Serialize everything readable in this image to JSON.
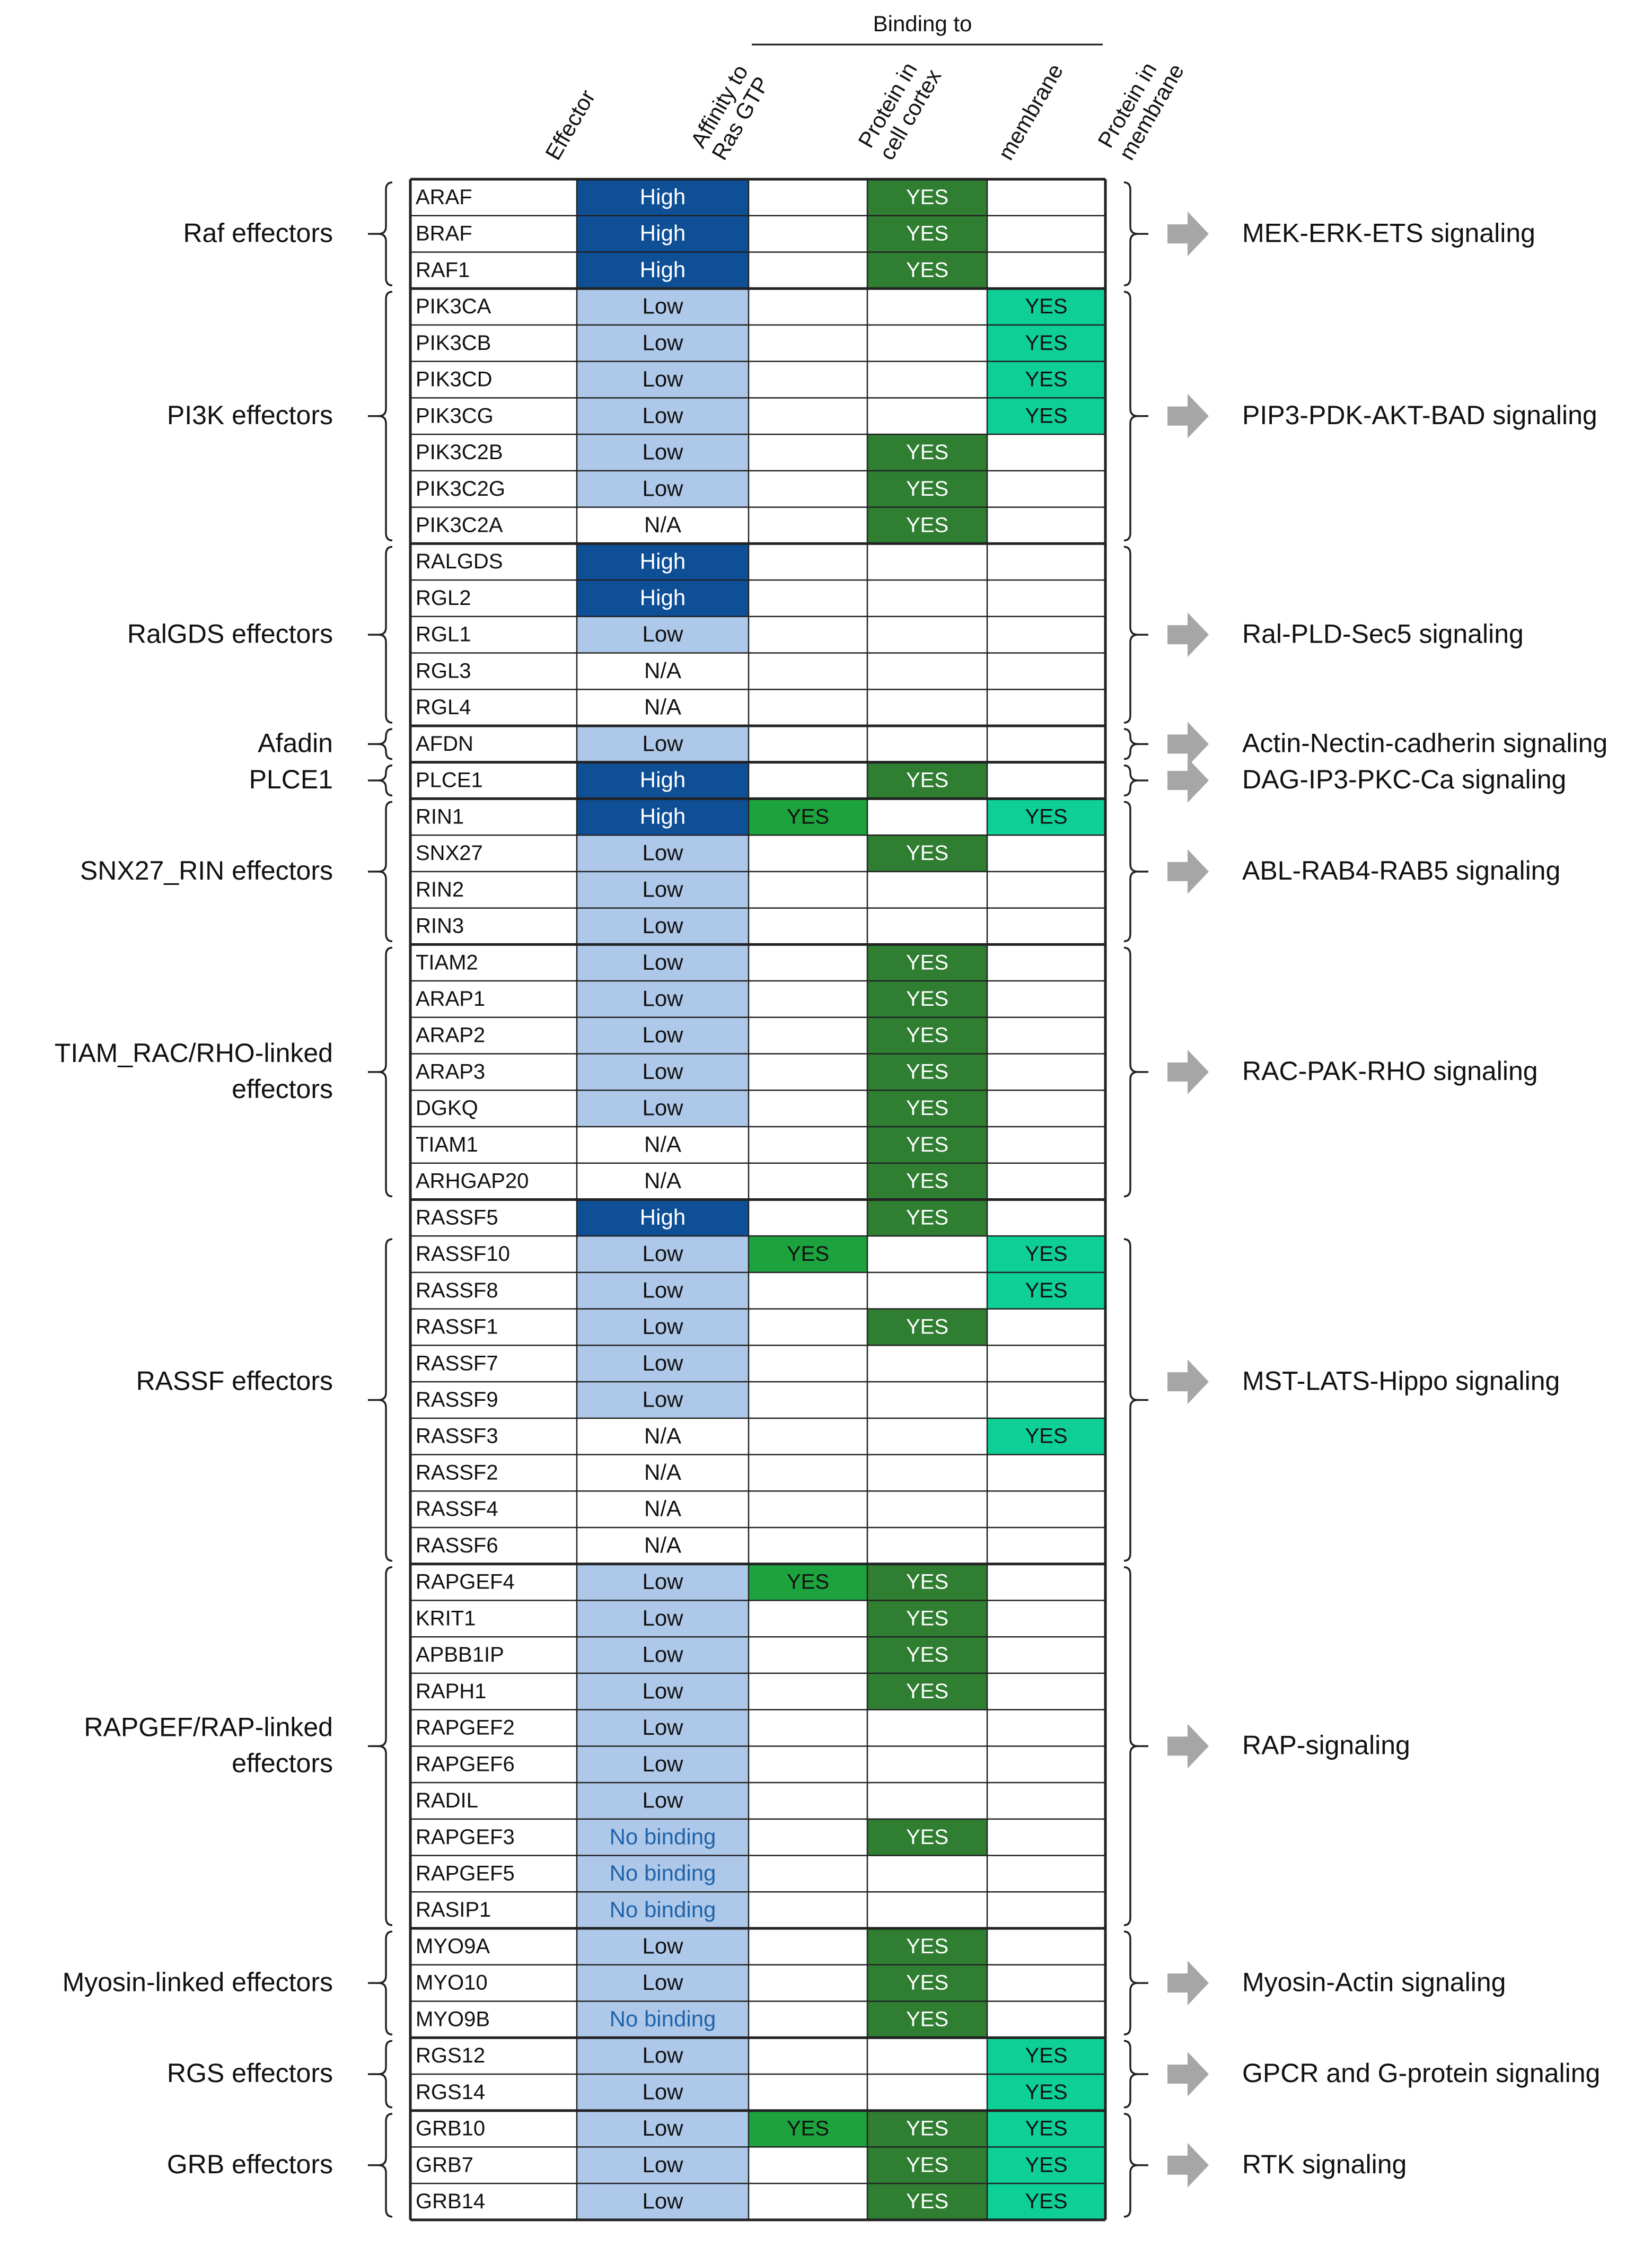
{
  "header": {
    "binding_to": "Binding to",
    "columns": [
      {
        "key": "effector",
        "lines": [
          "Effector"
        ]
      },
      {
        "key": "affinity",
        "lines": [
          "Affinity to",
          "Ras GTP"
        ]
      },
      {
        "key": "cortex",
        "lines": [
          "Protein in",
          "cell cortex"
        ]
      },
      {
        "key": "membrane",
        "lines": [
          "membrane"
        ]
      },
      {
        "key": "protein_membrane",
        "lines": [
          "Protein in",
          "membrane"
        ]
      }
    ]
  },
  "colors": {
    "high": "#0f4f96",
    "low": "#aec8ea",
    "cortex_yes": "#1da33e",
    "membrane_yes": "#2f7e32",
    "protein_membrane_yes": "#0ecf96",
    "no_binding_text": "#1f63a8",
    "arrow": "#a6a6a6",
    "grid": "#222222"
  },
  "yes_label": "YES",
  "rows": [
    {
      "name": "ARAF",
      "affinity": "High",
      "cortex": false,
      "membrane": true,
      "protein_membrane": false
    },
    {
      "name": "BRAF",
      "affinity": "High",
      "cortex": false,
      "membrane": true,
      "protein_membrane": false
    },
    {
      "name": "RAF1",
      "affinity": "High",
      "cortex": false,
      "membrane": true,
      "protein_membrane": false
    },
    {
      "name": "PIK3CA",
      "affinity": "Low",
      "cortex": false,
      "membrane": false,
      "protein_membrane": true
    },
    {
      "name": "PIK3CB",
      "affinity": "Low",
      "cortex": false,
      "membrane": false,
      "protein_membrane": true
    },
    {
      "name": "PIK3CD",
      "affinity": "Low",
      "cortex": false,
      "membrane": false,
      "protein_membrane": true
    },
    {
      "name": "PIK3CG",
      "affinity": "Low",
      "cortex": false,
      "membrane": false,
      "protein_membrane": true
    },
    {
      "name": "PIK3C2B",
      "affinity": "Low",
      "cortex": false,
      "membrane": true,
      "protein_membrane": false
    },
    {
      "name": "PIK3C2G",
      "affinity": "Low",
      "cortex": false,
      "membrane": true,
      "protein_membrane": false
    },
    {
      "name": "PIK3C2A",
      "affinity": "N/A",
      "cortex": false,
      "membrane": true,
      "protein_membrane": false
    },
    {
      "name": "RALGDS",
      "affinity": "High",
      "cortex": false,
      "membrane": false,
      "protein_membrane": false
    },
    {
      "name": "RGL2",
      "affinity": "High",
      "cortex": false,
      "membrane": false,
      "protein_membrane": false
    },
    {
      "name": "RGL1",
      "affinity": "Low",
      "cortex": false,
      "membrane": false,
      "protein_membrane": false
    },
    {
      "name": "RGL3",
      "affinity": "N/A",
      "cortex": false,
      "membrane": false,
      "protein_membrane": false
    },
    {
      "name": "RGL4",
      "affinity": "N/A",
      "cortex": false,
      "membrane": false,
      "protein_membrane": false
    },
    {
      "name": "AFDN",
      "affinity": "Low",
      "cortex": false,
      "membrane": false,
      "protein_membrane": false
    },
    {
      "name": "PLCE1",
      "affinity": "High",
      "cortex": false,
      "membrane": true,
      "protein_membrane": false
    },
    {
      "name": "RIN1",
      "affinity": "High",
      "cortex": true,
      "membrane": false,
      "protein_membrane": true
    },
    {
      "name": "SNX27",
      "affinity": "Low",
      "cortex": false,
      "membrane": true,
      "protein_membrane": false
    },
    {
      "name": "RIN2",
      "affinity": "Low",
      "cortex": false,
      "membrane": false,
      "protein_membrane": false
    },
    {
      "name": "RIN3",
      "affinity": "Low",
      "cortex": false,
      "membrane": false,
      "protein_membrane": false
    },
    {
      "name": "TIAM2",
      "affinity": "Low",
      "cortex": false,
      "membrane": true,
      "protein_membrane": false
    },
    {
      "name": "ARAP1",
      "affinity": "Low",
      "cortex": false,
      "membrane": true,
      "protein_membrane": false
    },
    {
      "name": "ARAP2",
      "affinity": "Low",
      "cortex": false,
      "membrane": true,
      "protein_membrane": false
    },
    {
      "name": "ARAP3",
      "affinity": "Low",
      "cortex": false,
      "membrane": true,
      "protein_membrane": false
    },
    {
      "name": "DGKQ",
      "affinity": "Low",
      "cortex": false,
      "membrane": true,
      "protein_membrane": false
    },
    {
      "name": "TIAM1",
      "affinity": "N/A",
      "cortex": false,
      "membrane": true,
      "protein_membrane": false
    },
    {
      "name": "ARHGAP20",
      "affinity": "N/A",
      "cortex": false,
      "membrane": true,
      "protein_membrane": false
    },
    {
      "name": "RASSF5",
      "affinity": "High",
      "cortex": false,
      "membrane": true,
      "protein_membrane": false
    },
    {
      "name": "RASSF10",
      "affinity": "Low",
      "cortex": true,
      "membrane": false,
      "protein_membrane": true
    },
    {
      "name": "RASSF8",
      "affinity": "Low",
      "cortex": false,
      "membrane": false,
      "protein_membrane": true
    },
    {
      "name": "RASSF1",
      "affinity": "Low",
      "cortex": false,
      "membrane": true,
      "protein_membrane": false
    },
    {
      "name": "RASSF7",
      "affinity": "Low",
      "cortex": false,
      "membrane": false,
      "protein_membrane": false
    },
    {
      "name": "RASSF9",
      "affinity": "Low",
      "cortex": false,
      "membrane": false,
      "protein_membrane": false
    },
    {
      "name": "RASSF3",
      "affinity": "N/A",
      "cortex": false,
      "membrane": false,
      "protein_membrane": true
    },
    {
      "name": "RASSF2",
      "affinity": "N/A",
      "cortex": false,
      "membrane": false,
      "protein_membrane": false
    },
    {
      "name": "RASSF4",
      "affinity": "N/A",
      "cortex": false,
      "membrane": false,
      "protein_membrane": false
    },
    {
      "name": "RASSF6",
      "affinity": "N/A",
      "cortex": false,
      "membrane": false,
      "protein_membrane": false
    },
    {
      "name": "RAPGEF4",
      "affinity": "Low",
      "cortex": true,
      "membrane": true,
      "protein_membrane": false
    },
    {
      "name": "KRIT1",
      "affinity": "Low",
      "cortex": false,
      "membrane": true,
      "protein_membrane": false
    },
    {
      "name": "APBB1IP",
      "affinity": "Low",
      "cortex": false,
      "membrane": true,
      "protein_membrane": false
    },
    {
      "name": "RAPH1",
      "affinity": "Low",
      "cortex": false,
      "membrane": true,
      "protein_membrane": false
    },
    {
      "name": "RAPGEF2",
      "affinity": "Low",
      "cortex": false,
      "membrane": false,
      "protein_membrane": false
    },
    {
      "name": "RAPGEF6",
      "affinity": "Low",
      "cortex": false,
      "membrane": false,
      "protein_membrane": false
    },
    {
      "name": "RADIL",
      "affinity": "Low",
      "cortex": false,
      "membrane": false,
      "protein_membrane": false
    },
    {
      "name": "RAPGEF3",
      "affinity": "No binding",
      "cortex": false,
      "membrane": true,
      "protein_membrane": false
    },
    {
      "name": "RAPGEF5",
      "affinity": "No binding",
      "cortex": false,
      "membrane": false,
      "protein_membrane": false
    },
    {
      "name": "RASIP1",
      "affinity": "No binding",
      "cortex": false,
      "membrane": false,
      "protein_membrane": false
    },
    {
      "name": "MYO9A",
      "affinity": "Low",
      "cortex": false,
      "membrane": true,
      "protein_membrane": false
    },
    {
      "name": "MYO10",
      "affinity": "Low",
      "cortex": false,
      "membrane": true,
      "protein_membrane": false
    },
    {
      "name": "MYO9B",
      "affinity": "No binding",
      "cortex": false,
      "membrane": true,
      "protein_membrane": false
    },
    {
      "name": "RGS12",
      "affinity": "Low",
      "cortex": false,
      "membrane": false,
      "protein_membrane": true
    },
    {
      "name": "RGS14",
      "affinity": "Low",
      "cortex": false,
      "membrane": false,
      "protein_membrane": true
    },
    {
      "name": "GRB10",
      "affinity": "Low",
      "cortex": true,
      "membrane": true,
      "protein_membrane": true
    },
    {
      "name": "GRB7",
      "affinity": "Low",
      "cortex": false,
      "membrane": true,
      "protein_membrane": true
    },
    {
      "name": "GRB14",
      "affinity": "Low",
      "cortex": false,
      "membrane": true,
      "protein_membrane": true
    }
  ],
  "groups": [
    {
      "lines": [
        "Raf effectors"
      ],
      "start": 0,
      "end": 2,
      "signaling": "MEK-ERK-ETS signaling"
    },
    {
      "lines": [
        "PI3K effectors"
      ],
      "start": 3,
      "end": 9,
      "signaling": "PIP3-PDK-AKT-BAD signaling"
    },
    {
      "lines": [
        "RalGDS effectors"
      ],
      "start": 10,
      "end": 14,
      "signaling": "Ral-PLD-Sec5 signaling"
    },
    {
      "lines": [
        "Afadin"
      ],
      "start": 15,
      "end": 15,
      "signaling": "Actin-Nectin-cadherin signaling"
    },
    {
      "lines": [
        "PLCE1"
      ],
      "start": 16,
      "end": 16,
      "signaling": "DAG-IP3-PKC-Ca signaling"
    },
    {
      "lines": [
        "SNX27_RIN effectors"
      ],
      "start": 17,
      "end": 20,
      "signaling": "ABL-RAB4-RAB5 signaling"
    },
    {
      "lines": [
        "TIAM_RAC/RHO-linked",
        "effectors"
      ],
      "start": 21,
      "end": 27,
      "signaling": "RAC-PAK-RHO signaling"
    },
    {
      "lines": [
        "RASSF effectors"
      ],
      "start": 28,
      "end": 37,
      "signaling": "MST-LATS-Hippo signaling",
      "bracket_start": 29
    },
    {
      "lines": [
        "RAPGEF/RAP-linked",
        "effectors"
      ],
      "start": 38,
      "end": 47,
      "signaling": "RAP-signaling"
    },
    {
      "lines": [
        "Myosin-linked effectors"
      ],
      "start": 48,
      "end": 50,
      "signaling": "Myosin-Actin signaling"
    },
    {
      "lines": [
        "RGS effectors"
      ],
      "start": 51,
      "end": 52,
      "signaling": "GPCR and G-protein signaling"
    },
    {
      "lines": [
        "GRB effectors"
      ],
      "start": 53,
      "end": 55,
      "signaling": "RTK signaling"
    }
  ]
}
